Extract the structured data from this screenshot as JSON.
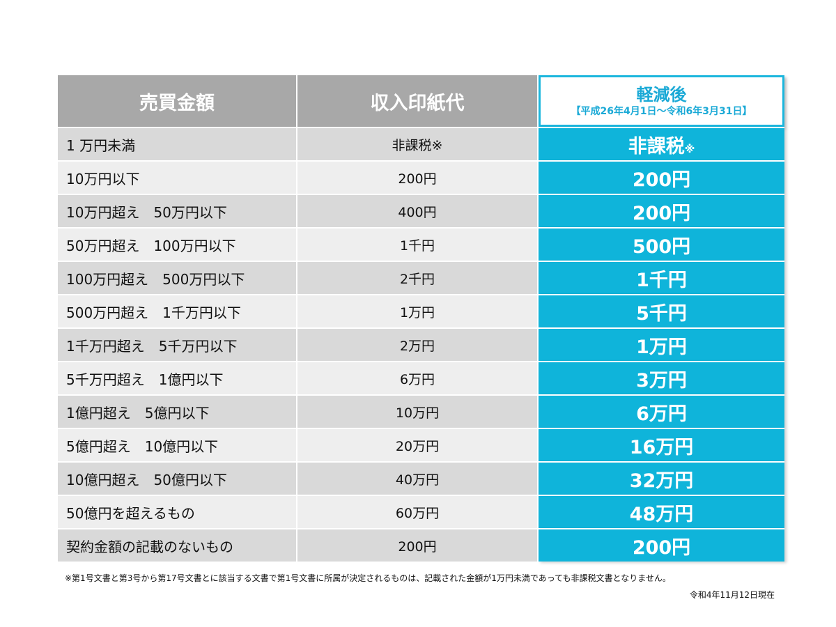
{
  "headers": {
    "amount": "売買金額",
    "stamp": "収入印紙代",
    "reduced_title": "軽減後",
    "reduced_period": "【平成26年4月1日～令和6年3月31日】"
  },
  "rows": [
    {
      "amount": "1 万円未満",
      "stamp": "非課税※",
      "reduced": "非課税",
      "reduced_mark": "※"
    },
    {
      "amount": "10万円以下",
      "stamp": "200円",
      "reduced": "200円",
      "reduced_mark": ""
    },
    {
      "amount": "10万円超え　50万円以下",
      "stamp": "400円",
      "reduced": "200円",
      "reduced_mark": ""
    },
    {
      "amount": "50万円超え　100万円以下",
      "stamp": "1千円",
      "reduced": "500円",
      "reduced_mark": ""
    },
    {
      "amount": "100万円超え　500万円以下",
      "stamp": "2千円",
      "reduced": "1千円",
      "reduced_mark": ""
    },
    {
      "amount": "500万円超え　1千万円以下",
      "stamp": "1万円",
      "reduced": "5千円",
      "reduced_mark": ""
    },
    {
      "amount": "1千万円超え　5千万円以下",
      "stamp": "2万円",
      "reduced": "1万円",
      "reduced_mark": ""
    },
    {
      "amount": "5千万円超え　1億円以下",
      "stamp": "6万円",
      "reduced": "3万円",
      "reduced_mark": ""
    },
    {
      "amount": "1億円超え　5億円以下",
      "stamp": "10万円",
      "reduced": "6万円",
      "reduced_mark": ""
    },
    {
      "amount": "5億円超え　10億円以下",
      "stamp": "20万円",
      "reduced": "16万円",
      "reduced_mark": ""
    },
    {
      "amount": "10億円超え　50億円以下",
      "stamp": "40万円",
      "reduced": "32万円",
      "reduced_mark": ""
    },
    {
      "amount": "50億円を超えるもの",
      "stamp": "60万円",
      "reduced": "48万円",
      "reduced_mark": ""
    },
    {
      "amount": "契約金額の記載のないもの",
      "stamp": "200円",
      "reduced": "200円",
      "reduced_mark": ""
    }
  ],
  "footnote": "※第1号文書と第3号から第17号文書とに該当する文書で第1号文書に所属が決定されるものは、記載された金額が1万円未満であっても非課税文書となりません。",
  "as_of": "令和4年11月12日現在",
  "colors": {
    "header_gray": "#a8a8a8",
    "reduced_blue": "#0fb4da",
    "row_dark": "#d9d9d9",
    "row_light": "#eeeeee"
  }
}
